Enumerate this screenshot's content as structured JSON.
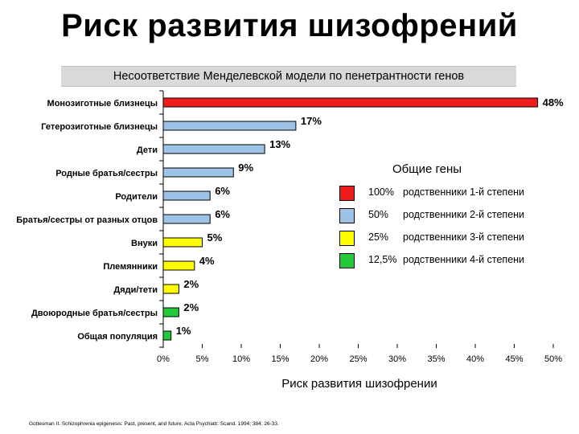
{
  "title": "Риск развития шизофрений",
  "subtitle": "Несоответствие Менделевской модели по пенетрантности генов",
  "citation": "Gottesman II. Schizophrenia epigenesis: Past, present, and future. Acta Psychiatr. Scand. 1994; 384: 26-33.",
  "colors": {
    "red": "#ee1c1c",
    "blue": "#9dc3e6",
    "yellow": "#ffff00",
    "green": "#22c93a"
  },
  "legend": {
    "title": "Общие гены",
    "items": [
      {
        "pct": "100%",
        "text": "родственники 1-й степени",
        "color": "#ee1c1c"
      },
      {
        "pct": "50%",
        "text": "родственники 2-й степени",
        "color": "#9dc3e6"
      },
      {
        "pct": "25%",
        "text": "родственники 3-й степени",
        "color": "#ffff00"
      },
      {
        "pct": "12,5%",
        "text": "родственники 4-й степени",
        "color": "#22c93a"
      }
    ]
  },
  "chart_data": {
    "type": "bar",
    "orientation": "horizontal",
    "xlabel": "Риск развития шизофрении",
    "xlim": [
      0,
      50
    ],
    "xticks": [
      "0%",
      "5%",
      "10%",
      "15%",
      "20%",
      "25%",
      "30%",
      "35%",
      "40%",
      "45%",
      "50%"
    ],
    "categories": [
      "Монозиготные близнецы",
      "Гетерозиготные близнецы",
      "Дети",
      "Родные братья/сестры",
      "Родители",
      "Братья/сестры от разных отцов",
      "Внуки",
      "Племянники",
      "Дяди/тети",
      "Двоюродные братья/сестры",
      "Общая популяция"
    ],
    "values": [
      48,
      17,
      13,
      9,
      6,
      6,
      5,
      4,
      2,
      2,
      1
    ],
    "value_labels": [
      "48%",
      "17%",
      "13%",
      "9%",
      "6%",
      "6%",
      "5%",
      "4%",
      "2%",
      "2%",
      "1%"
    ],
    "bar_colors": [
      "#ee1c1c",
      "#9dc3e6",
      "#9dc3e6",
      "#9dc3e6",
      "#9dc3e6",
      "#9dc3e6",
      "#ffff00",
      "#ffff00",
      "#ffff00",
      "#22c93a",
      "#22c93a"
    ]
  }
}
